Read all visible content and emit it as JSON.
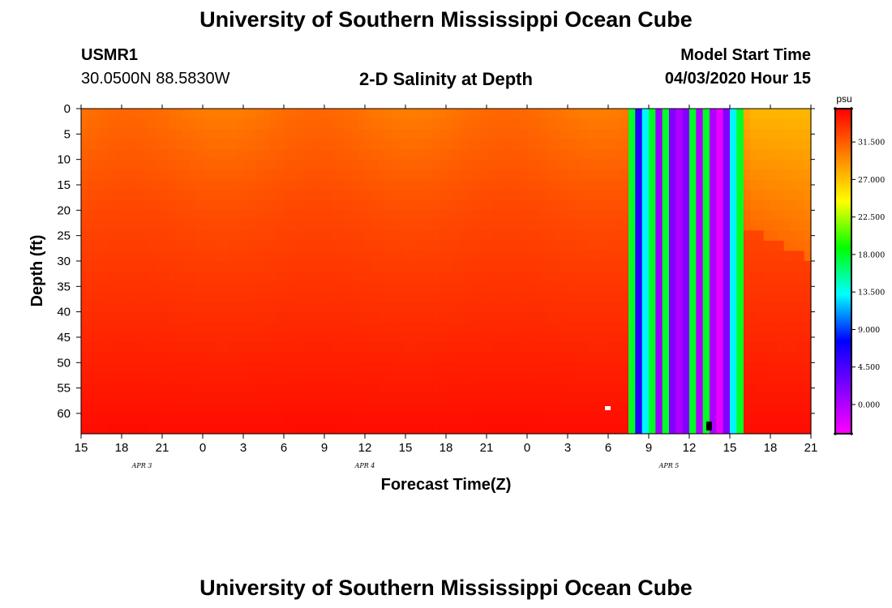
{
  "header": {
    "top_title": "University of Southern Mississippi Ocean Cube",
    "bottom_title": "University of Southern Mississippi Ocean Cube",
    "station_id": "USMR1",
    "coordinates": "30.0500N 88.5830W",
    "plot_title": "2-D Salinity at Depth",
    "model_start_label": "Model Start Time",
    "model_start_value": "04/03/2020 Hour 15"
  },
  "colors": {
    "ramp": [
      "#ff00ff",
      "#8000ff",
      "#0000ff",
      "#00ffff",
      "#00ff00",
      "#ffff00",
      "#ff8000",
      "#ff0000"
    ]
  },
  "chart_data": {
    "type": "heatmap",
    "title": "2-D Salinity at Depth",
    "xlabel": "Forecast Time(Z)",
    "ylabel": "Depth (ft)",
    "x_ticks": [
      "15",
      "18",
      "21",
      "0",
      "3",
      "6",
      "9",
      "12",
      "15",
      "18",
      "21",
      "0",
      "3",
      "6",
      "9",
      "12",
      "15",
      "18",
      "21"
    ],
    "x_hours_range": [
      0,
      54
    ],
    "date_labels": [
      {
        "text": "APR 3",
        "hour": 4.5
      },
      {
        "text": "APR 4",
        "hour": 21
      },
      {
        "text": "APR 5",
        "hour": 43.5
      }
    ],
    "y_ticks": [
      0,
      5,
      10,
      15,
      20,
      25,
      30,
      35,
      40,
      45,
      50,
      55,
      60
    ],
    "ylim": [
      0,
      64
    ],
    "colorbar": {
      "unit": "psu",
      "range": [
        -3.5,
        35.5
      ],
      "ticks": [
        0.0,
        4.5,
        9.0,
        13.5,
        18.0,
        22.5,
        27.0,
        31.5
      ],
      "tick_labels": [
        "0.000",
        "4.500",
        "9.000",
        "13.500",
        "18.000",
        "22.500",
        "27.000",
        "31.500"
      ]
    },
    "field": {
      "surface_salinity_psu": 30.5,
      "bottom_salinity_psu": 35.0,
      "mixed_layer_depth_ft": 20,
      "fresh_nearshore_hours": [
        48,
        54
      ],
      "fresh_nearshore_surface_psu": 27.5
    },
    "invalid_bands": [
      {
        "start_hour": 40.5,
        "end_hour": 41.0,
        "value": 18.0
      },
      {
        "start_hour": 41.0,
        "end_hour": 41.5,
        "value": 6.0
      },
      {
        "start_hour": 41.5,
        "end_hour": 42.0,
        "value": 13.0
      },
      {
        "start_hour": 42.0,
        "end_hour": 42.5,
        "value": 18.0
      },
      {
        "start_hour": 42.5,
        "end_hour": 43.0,
        "value": 1.0
      },
      {
        "start_hour": 43.0,
        "end_hour": 43.5,
        "value": 18.0
      },
      {
        "start_hour": 43.5,
        "end_hour": 44.0,
        "value": 2.0
      },
      {
        "start_hour": 44.0,
        "end_hour": 44.5,
        "value": 0.0
      },
      {
        "start_hour": 44.5,
        "end_hour": 45.0,
        "value": 2.0
      },
      {
        "start_hour": 45.0,
        "end_hour": 45.5,
        "value": 18.0
      },
      {
        "start_hour": 45.5,
        "end_hour": 46.0,
        "value": 0.0
      },
      {
        "start_hour": 46.0,
        "end_hour": 46.5,
        "value": 18.0
      },
      {
        "start_hour": 46.5,
        "end_hour": 47.0,
        "value": 0.0
      },
      {
        "start_hour": 47.0,
        "end_hour": 47.5,
        "value": -2.5
      },
      {
        "start_hour": 47.5,
        "end_hour": 48.0,
        "value": 2.0
      },
      {
        "start_hour": 48.0,
        "end_hour": 48.5,
        "value": 13.0
      },
      {
        "start_hour": 48.5,
        "end_hour": 49.0,
        "value": 18.0
      }
    ]
  }
}
